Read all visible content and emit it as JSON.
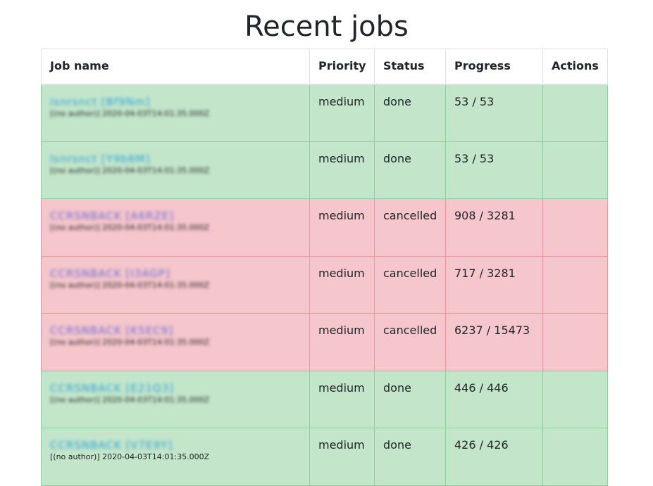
{
  "page": {
    "title": "Recent jobs"
  },
  "table": {
    "headers": {
      "name": "Job name",
      "priority": "Priority",
      "status": "Status",
      "progress": "Progress",
      "actions": "Actions"
    },
    "rows": [
      {
        "name": "lsnrsnct [Bf9Nm]",
        "meta": "[(no author)] 2020-04-03T14:01:35.000Z",
        "priority": "medium",
        "status": "done",
        "progress": "53 / 53",
        "actions": ""
      },
      {
        "name": "lsnrsnct [Y9b6M]",
        "meta": "[(no author)] 2020-04-03T14:01:35.000Z",
        "priority": "medium",
        "status": "done",
        "progress": "53 / 53",
        "actions": ""
      },
      {
        "name": "CCRSNBACK [A6RZE]",
        "meta": "[(no author)] 2020-04-03T14:01:35.000Z",
        "priority": "medium",
        "status": "cancelled",
        "progress": "908 / 3281",
        "actions": ""
      },
      {
        "name": "CCRSNBACK [I3AGP]",
        "meta": "[(no author)] 2020-04-03T14:01:35.000Z",
        "priority": "medium",
        "status": "cancelled",
        "progress": "717 / 3281",
        "actions": ""
      },
      {
        "name": "CCRSNBACK [K5EC9]",
        "meta": "[(no author)] 2020-04-03T14:01:35.000Z",
        "priority": "medium",
        "status": "cancelled",
        "progress": "6237 / 15473",
        "actions": ""
      },
      {
        "name": "CCRSNBACK [E21Q3]",
        "meta": "[(no author)] 2020-04-03T14:01:35.000Z",
        "priority": "medium",
        "status": "done",
        "progress": "446 / 446",
        "actions": ""
      },
      {
        "name": "CCRSNBACK [V7E9Y]",
        "meta": "[(no author)] 2020-04-03T14:01:35.000Z",
        "priority": "medium",
        "status": "done",
        "progress": "426 / 426",
        "actions": ""
      }
    ]
  },
  "colors": {
    "done_bg": "#c3e6cb",
    "done_border": "#8fd19e",
    "cancelled_bg": "#f5c6cb",
    "cancelled_border": "#ed969e"
  }
}
